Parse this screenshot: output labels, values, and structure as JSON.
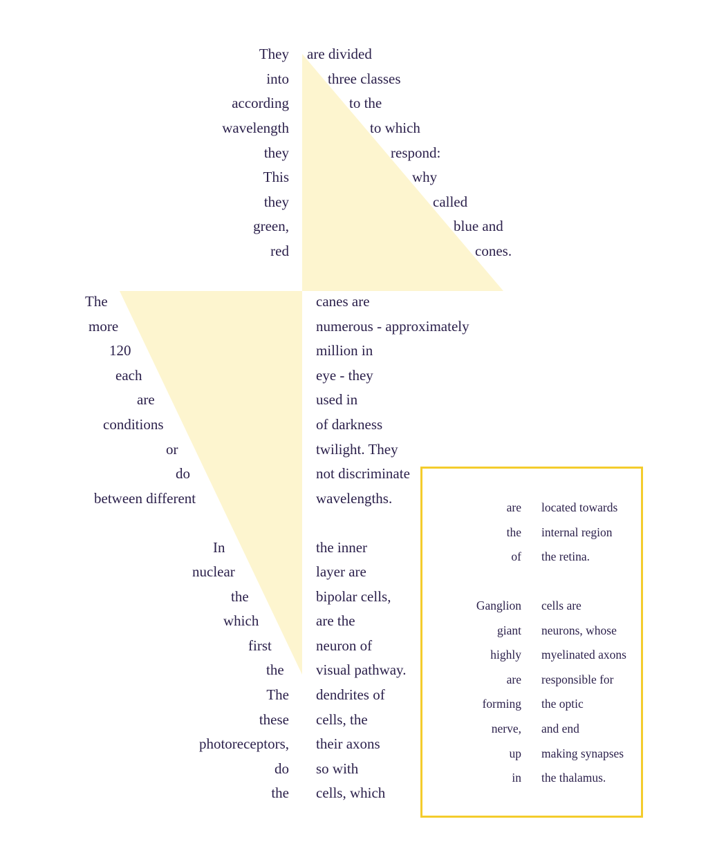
{
  "colors": {
    "text": "#2a1f4a",
    "triangle_fill": "#fdf5cf",
    "box_border": "#f4cc2c"
  },
  "sections": {
    "classes": {
      "left": [
        "They",
        "into",
        "according",
        "wavelength",
        "they",
        "This",
        "they",
        "green,",
        "red"
      ],
      "right": [
        "are divided",
        "three classes",
        "to the",
        "to which",
        "respond:",
        "why",
        "called",
        "blue and",
        "cones."
      ]
    },
    "rods": {
      "left": [
        "The",
        "more",
        "120",
        "each",
        "are",
        "conditions",
        "or",
        "do",
        "between different"
      ],
      "right": [
        "canes are",
        "numerous - approximately",
        "million in",
        "eye - they",
        "used in",
        "of darkness",
        "twilight. They",
        "not discriminate",
        "wavelengths."
      ]
    },
    "bipolar": {
      "left": [
        "In",
        "nuclear",
        "the",
        "which",
        "first",
        "the",
        "The",
        "these",
        "photoreceptors,",
        "do",
        "the"
      ],
      "right": [
        "the inner",
        "layer are",
        "bipolar cells,",
        "are the",
        "neuron of",
        "visual pathway.",
        "dendrites of",
        "cells, the",
        "their axons",
        "so with",
        "cells, which"
      ]
    },
    "box_top": {
      "left": [
        "are",
        "the",
        "of"
      ],
      "right": [
        "located towards",
        "internal region",
        "the retina."
      ]
    },
    "box_ganglion": {
      "left": [
        "Ganglion",
        "giant",
        "highly",
        "are",
        "forming",
        "nerve,",
        "up",
        "in"
      ],
      "right": [
        "cells are",
        "neurons, whose",
        "myelinated axons",
        "responsible for",
        "the optic",
        "and end",
        "making synapses",
        "the thalamus."
      ]
    }
  }
}
